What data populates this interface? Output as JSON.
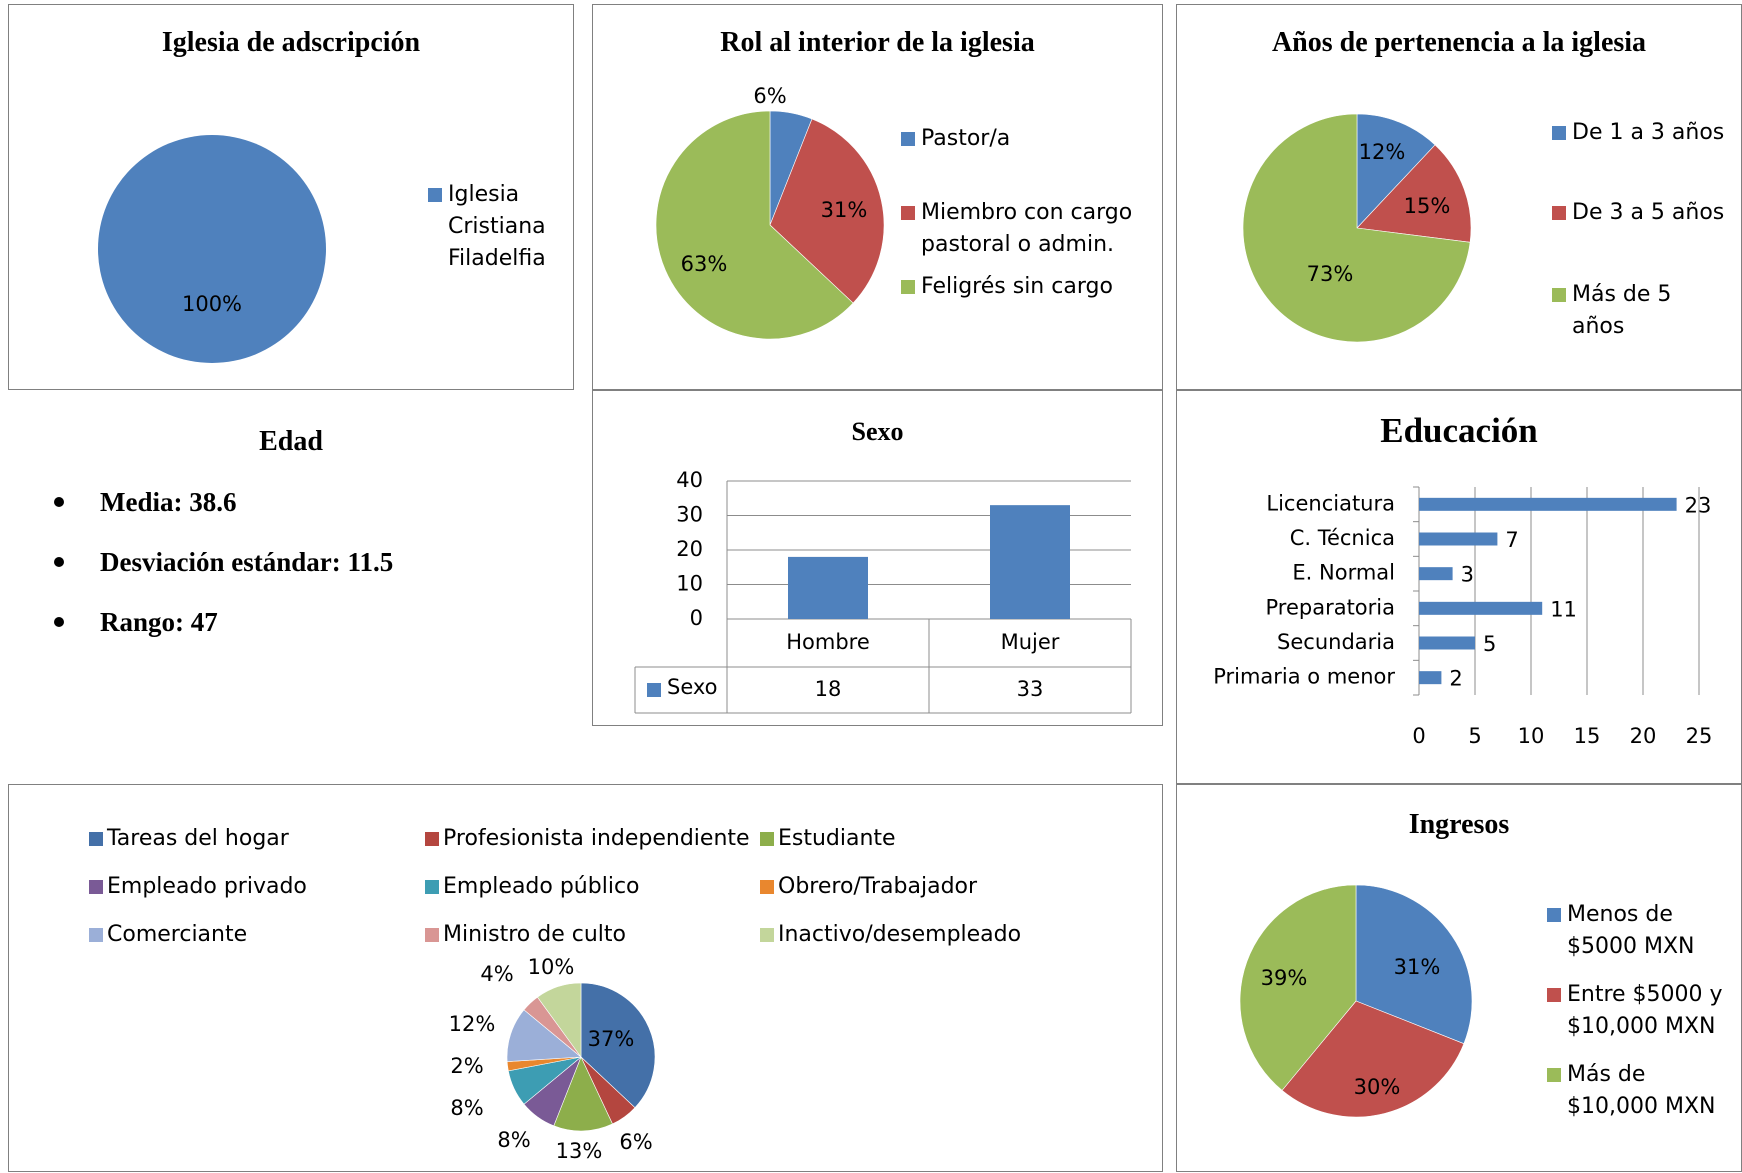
{
  "charts": {
    "iglesia": {
      "title": "Iglesia de adscripción",
      "legend": [
        "Iglesia Cristiana Filadelfia"
      ],
      "legend_lines": [
        [
          "Iglesia",
          "Cristiana",
          "Filadelfia"
        ]
      ],
      "colors": [
        "#4F81BD"
      ]
    },
    "rol": {
      "title": "Rol al interior de la iglesia",
      "legend": [
        "Pastor/a",
        "Miembro con cargo pastoral o admin.",
        "Feligrés sin cargo"
      ],
      "legend_lines": [
        [
          "Pastor/a"
        ],
        [
          "Miembro con cargo",
          "pastoral o admin."
        ],
        [
          "Feligrés sin cargo"
        ]
      ],
      "colors": [
        "#4F81BD",
        "#C0504D",
        "#9BBB59"
      ]
    },
    "anios": {
      "title": "Años de pertenencia a la iglesia",
      "legend": [
        "De 1 a 3 años",
        "De 3 a 5 años",
        "Más de 5 años"
      ],
      "legend_lines": [
        [
          "De 1 a 3 años"
        ],
        [
          "De 3 a 5 años"
        ],
        [
          "Más de 5",
          "años"
        ]
      ],
      "colors": [
        "#4F81BD",
        "#C0504D",
        "#9BBB59"
      ]
    },
    "sexo": {
      "title": "Sexo",
      "colors": [
        "#4F81BD"
      ]
    },
    "educacion": {
      "title": "Educación",
      "colors": [
        "#4F81BD"
      ]
    },
    "ocupacion": {
      "legend": [
        "Tareas del hogar",
        "Profesionista independiente",
        "Estudiante",
        "Empleado privado",
        "Empleado público",
        "Obrero/Trabajador",
        "Comerciante",
        "Ministro de culto",
        "Inactivo/desempleado"
      ],
      "colors": [
        "#4470A8",
        "#B4463F",
        "#8DAE4B",
        "#7A5A96",
        "#3D9DB3",
        "#E9872E",
        "#9BAFD8",
        "#D99694",
        "#C3D69B"
      ]
    },
    "ingresos": {
      "title": "Ingresos",
      "legend": [
        "Menos de $5000 MXN",
        "Entre $5000 y $10,000 MXN",
        "Más de $10,000 MXN"
      ],
      "legend_lines": [
        [
          "Menos de",
          "$5000 MXN"
        ],
        [
          "Entre $5000 y",
          "$10,000 MXN"
        ],
        [
          "Más de",
          "$10,000 MXN"
        ]
      ],
      "colors": [
        "#4F81BD",
        "#C0504D",
        "#9BBB59"
      ]
    }
  },
  "edad": {
    "title": "Edad",
    "items": [
      "Media: 38.6",
      "Desviación estándar: 11.5",
      "Rango: 47"
    ]
  },
  "chart_data": [
    {
      "type": "pie",
      "title": "Iglesia de adscripción",
      "categories": [
        "Iglesia Cristiana Filadelfia"
      ],
      "values": [
        100
      ],
      "labels": [
        "100%"
      ]
    },
    {
      "type": "pie",
      "title": "Rol al interior de la iglesia",
      "categories": [
        "Pastor/a",
        "Miembro con cargo pastoral o admin.",
        "Feligrés sin cargo"
      ],
      "values": [
        6,
        31,
        63
      ],
      "labels": [
        "6%",
        "31%",
        "63%"
      ]
    },
    {
      "type": "pie",
      "title": "Años de pertenencia a la iglesia",
      "categories": [
        "De 1 a 3 años",
        "De 3 a 5 años",
        "Más de 5 años"
      ],
      "values": [
        12,
        15,
        73
      ],
      "labels": [
        "12%",
        "15%",
        "73%"
      ]
    },
    {
      "type": "bar",
      "title": "Sexo",
      "categories": [
        "Hombre",
        "Mujer"
      ],
      "series": [
        {
          "name": "Sexo",
          "values": [
            18,
            33
          ]
        }
      ],
      "ylim": [
        0,
        40
      ],
      "yticks": [
        0,
        10,
        20,
        30,
        40
      ],
      "grid": true,
      "data_table": true
    },
    {
      "type": "bar",
      "orientation": "horizontal",
      "title": "Educación",
      "categories": [
        "Licenciatura",
        "C. Técnica",
        "E. Normal",
        "Preparatoria",
        "Secundaria",
        "Primaria o menor"
      ],
      "values": [
        23,
        7,
        3,
        11,
        5,
        2
      ],
      "labels": [
        "23",
        "7",
        "3",
        "11",
        "5",
        "2"
      ],
      "xlim": [
        0,
        25
      ],
      "xticks": [
        0,
        5,
        10,
        15,
        20,
        25
      ],
      "grid": true
    },
    {
      "type": "pie",
      "title": "",
      "categories": [
        "Tareas del hogar",
        "Profesionista independiente",
        "Estudiante",
        "Empleado privado",
        "Empleado público",
        "Obrero/Trabajador",
        "Comerciante",
        "Ministro de culto",
        "Inactivo/desempleado"
      ],
      "values": [
        37,
        6,
        13,
        8,
        8,
        2,
        12,
        4,
        10
      ],
      "labels": [
        "37%",
        "6%",
        "13%",
        "8%",
        "8%",
        "2%",
        "12%",
        "4%",
        "10%"
      ],
      "legend_position": "top"
    },
    {
      "type": "pie",
      "title": "Ingresos",
      "categories": [
        "Menos de $5000 MXN",
        "Entre $5000 y $10,000 MXN",
        "Más de $10,000 MXN"
      ],
      "values": [
        31,
        30,
        39
      ],
      "labels": [
        "31%",
        "30%",
        "39%"
      ]
    }
  ]
}
